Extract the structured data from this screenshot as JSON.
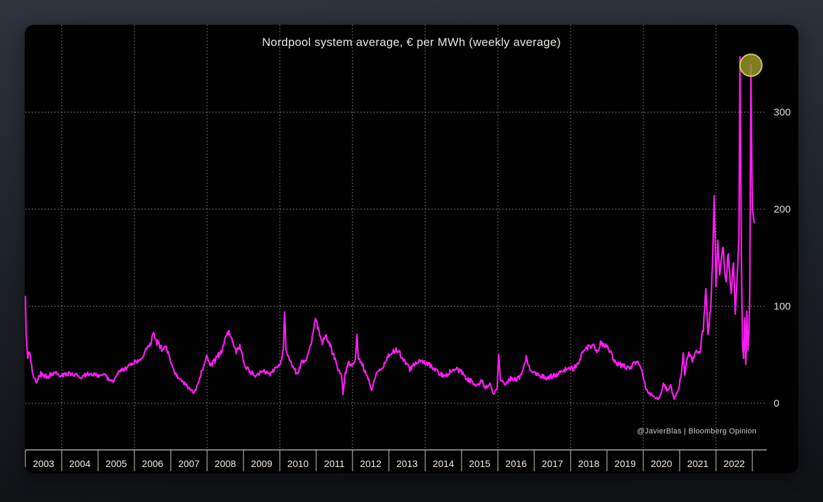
{
  "header": {
    "title": "Nordpool system average, € per MWh (weekly average)"
  },
  "footer": {
    "attribution": "@JavierBlas | Bloomberg Opinion"
  },
  "colors": {
    "background_top": "#2e333d",
    "background_bottom": "#101114",
    "card_background": "#020202",
    "grid": "#96938e",
    "axis": "#cbc8c2",
    "tick_label": "#f0ece7",
    "value_label": "#dedbd6",
    "title_text": "#ebe7e1",
    "attribution_text": "#cfccc7"
  },
  "chart_data": {
    "type": "line",
    "title": "Nordpool system average, € per MWh (weekly average)",
    "ylabel": "€ per MWh",
    "frequency": "weekly average",
    "legend": "none",
    "grid": "dotted, horizontal at y ticks, vertical at even years",
    "x_domain": [
      2003,
      2023.05
    ],
    "y_axis_side": "right",
    "y_ticks": [
      0,
      100,
      200,
      300
    ],
    "y_tick_labels": [
      "0",
      "100",
      "200",
      "300"
    ],
    "ylim_visible": [
      0,
      365
    ],
    "x_tick_labels": [
      "2003",
      "2004",
      "2005",
      "2006",
      "2007",
      "2008",
      "2009",
      "2010",
      "2011",
      "2012",
      "2013",
      "2014",
      "2015",
      "2016",
      "2017",
      "2018",
      "2019",
      "2020",
      "2021",
      "2022"
    ],
    "x_gridline_years": [
      2004,
      2006,
      2008,
      2010,
      2012,
      2014,
      2016,
      2018,
      2020,
      2022
    ],
    "sampling": {
      "per_year": 52
    },
    "series": [
      {
        "name": "Nordpool system average (€/MWh)",
        "color": "#ff1cf4",
        "anchors_format": "[decimal_year, value_eur_mwh, weekly_noise_amplitude]",
        "anchors": [
          [
            2003.0,
            110,
            0
          ],
          [
            2003.02,
            72,
            0
          ],
          [
            2003.06,
            48,
            2
          ],
          [
            2003.12,
            54,
            2
          ],
          [
            2003.19,
            33,
            2
          ],
          [
            2003.29,
            21,
            2
          ],
          [
            2003.42,
            30,
            2.5
          ],
          [
            2003.6,
            27,
            2.5
          ],
          [
            2003.8,
            32,
            2.5
          ],
          [
            2004.0,
            29,
            2.5
          ],
          [
            2004.25,
            31,
            2.5
          ],
          [
            2004.5,
            27,
            2.5
          ],
          [
            2004.75,
            30,
            2.5
          ],
          [
            2005.0,
            29,
            2.5
          ],
          [
            2005.2,
            28,
            2.5
          ],
          [
            2005.42,
            22,
            2
          ],
          [
            2005.55,
            32,
            2.5
          ],
          [
            2005.75,
            35,
            2.5
          ],
          [
            2005.95,
            41,
            3
          ],
          [
            2006.15,
            46,
            3
          ],
          [
            2006.3,
            52,
            3.5
          ],
          [
            2006.45,
            61,
            3.5
          ],
          [
            2006.52,
            74,
            2
          ],
          [
            2006.62,
            63,
            3.5
          ],
          [
            2006.75,
            56,
            3.5
          ],
          [
            2006.88,
            58,
            3
          ],
          [
            2006.97,
            45,
            3
          ],
          [
            2007.1,
            32,
            3
          ],
          [
            2007.25,
            25,
            2.5
          ],
          [
            2007.4,
            20,
            2
          ],
          [
            2007.55,
            13,
            1.5
          ],
          [
            2007.65,
            11,
            1.5
          ],
          [
            2007.78,
            24,
            2.5
          ],
          [
            2007.9,
            39,
            2.5
          ],
          [
            2008.0,
            50,
            3
          ],
          [
            2008.1,
            39,
            3
          ],
          [
            2008.25,
            46,
            3
          ],
          [
            2008.4,
            54,
            3
          ],
          [
            2008.52,
            70,
            2.5
          ],
          [
            2008.6,
            73,
            2.5
          ],
          [
            2008.72,
            61,
            3.5
          ],
          [
            2008.82,
            53,
            3.5
          ],
          [
            2008.9,
            59,
            3
          ],
          [
            2009.0,
            44,
            3
          ],
          [
            2009.1,
            36,
            3
          ],
          [
            2009.22,
            31,
            3
          ],
          [
            2009.38,
            29,
            2.5
          ],
          [
            2009.55,
            33,
            2.5
          ],
          [
            2009.75,
            30,
            2.5
          ],
          [
            2009.95,
            38,
            2.5
          ],
          [
            2010.05,
            44,
            2.5
          ],
          [
            2010.1,
            58,
            0
          ],
          [
            2010.13,
            94,
            0
          ],
          [
            2010.17,
            55,
            0
          ],
          [
            2010.25,
            46,
            3
          ],
          [
            2010.4,
            34,
            3
          ],
          [
            2010.5,
            31,
            3
          ],
          [
            2010.6,
            45,
            3.5
          ],
          [
            2010.7,
            42,
            3
          ],
          [
            2010.82,
            55,
            3.5
          ],
          [
            2010.92,
            75,
            3
          ],
          [
            2010.98,
            89,
            2
          ],
          [
            2011.08,
            72,
            3.5
          ],
          [
            2011.18,
            64,
            3.5
          ],
          [
            2011.28,
            70,
            3
          ],
          [
            2011.4,
            58,
            3.5
          ],
          [
            2011.52,
            44,
            3
          ],
          [
            2011.62,
            34,
            3
          ],
          [
            2011.7,
            28,
            2
          ],
          [
            2011.74,
            9,
            0
          ],
          [
            2011.8,
            30,
            2.5
          ],
          [
            2011.88,
            42,
            2.5
          ],
          [
            2011.98,
            38,
            2.5
          ],
          [
            2012.08,
            44,
            2
          ],
          [
            2012.12,
            71,
            0
          ],
          [
            2012.16,
            45,
            2
          ],
          [
            2012.25,
            42,
            3
          ],
          [
            2012.35,
            32,
            3
          ],
          [
            2012.45,
            25,
            2.5
          ],
          [
            2012.52,
            12,
            1.5
          ],
          [
            2012.6,
            26,
            2.5
          ],
          [
            2012.72,
            33,
            2.5
          ],
          [
            2012.82,
            36,
            2.5
          ],
          [
            2012.95,
            48,
            3
          ],
          [
            2013.05,
            52,
            3
          ],
          [
            2013.18,
            55,
            3
          ],
          [
            2013.28,
            53,
            3
          ],
          [
            2013.38,
            46,
            3
          ],
          [
            2013.48,
            40,
            3
          ],
          [
            2013.58,
            35,
            2.5
          ],
          [
            2013.7,
            40,
            2.5
          ],
          [
            2013.82,
            44,
            2.5
          ],
          [
            2013.95,
            42,
            2.5
          ],
          [
            2014.1,
            40,
            3
          ],
          [
            2014.25,
            35,
            3
          ],
          [
            2014.4,
            30,
            2.5
          ],
          [
            2014.55,
            28,
            2.5
          ],
          [
            2014.7,
            33,
            2.5
          ],
          [
            2014.85,
            35,
            2.5
          ],
          [
            2015.0,
            32,
            2.5
          ],
          [
            2015.15,
            25,
            2.5
          ],
          [
            2015.3,
            22,
            2.5
          ],
          [
            2015.45,
            18,
            2
          ],
          [
            2015.55,
            24,
            2.5
          ],
          [
            2015.65,
            15,
            2
          ],
          [
            2015.78,
            20,
            2
          ],
          [
            2015.88,
            9,
            1.5
          ],
          [
            2015.98,
            16,
            0
          ],
          [
            2016.02,
            50,
            0
          ],
          [
            2016.07,
            24,
            0
          ],
          [
            2016.2,
            21,
            2.5
          ],
          [
            2016.35,
            25,
            2.5
          ],
          [
            2016.5,
            24,
            2.5
          ],
          [
            2016.65,
            28,
            2.5
          ],
          [
            2016.78,
            47,
            2
          ],
          [
            2016.9,
            32,
            2.5
          ],
          [
            2017.05,
            30,
            2.5
          ],
          [
            2017.2,
            28,
            2.5
          ],
          [
            2017.35,
            26,
            2.5
          ],
          [
            2017.5,
            28,
            2.5
          ],
          [
            2017.65,
            30,
            2.5
          ],
          [
            2017.8,
            33,
            2.5
          ],
          [
            2017.95,
            37,
            2.5
          ],
          [
            2018.1,
            36,
            3
          ],
          [
            2018.22,
            43,
            3
          ],
          [
            2018.35,
            53,
            3
          ],
          [
            2018.5,
            58,
            3
          ],
          [
            2018.62,
            60,
            2.5
          ],
          [
            2018.72,
            52,
            3
          ],
          [
            2018.82,
            62,
            2.5
          ],
          [
            2018.95,
            60,
            2.5
          ],
          [
            2019.05,
            56,
            3
          ],
          [
            2019.2,
            44,
            3
          ],
          [
            2019.35,
            40,
            3
          ],
          [
            2019.5,
            38,
            3
          ],
          [
            2019.62,
            35,
            2.5
          ],
          [
            2019.75,
            43,
            3
          ],
          [
            2019.88,
            40,
            2.5
          ],
          [
            2019.98,
            30,
            2
          ],
          [
            2020.08,
            14,
            2
          ],
          [
            2020.2,
            9,
            1.5
          ],
          [
            2020.33,
            6,
            1.5
          ],
          [
            2020.45,
            5,
            1.5
          ],
          [
            2020.55,
            21,
            2.5
          ],
          [
            2020.65,
            14,
            2
          ],
          [
            2020.75,
            18,
            2
          ],
          [
            2020.85,
            4,
            1
          ],
          [
            2020.95,
            12,
            2
          ],
          [
            2021.05,
            30,
            2
          ],
          [
            2021.1,
            52,
            0
          ],
          [
            2021.14,
            29,
            0
          ],
          [
            2021.25,
            55,
            4
          ],
          [
            2021.35,
            40,
            4
          ],
          [
            2021.45,
            58,
            4
          ],
          [
            2021.55,
            50,
            4
          ],
          [
            2021.65,
            78,
            5
          ],
          [
            2021.72,
            118,
            0
          ],
          [
            2021.78,
            74,
            5
          ],
          [
            2021.85,
            95,
            5
          ],
          [
            2021.9,
            140,
            0
          ],
          [
            2021.95,
            214,
            0
          ],
          [
            2022.0,
            120,
            0
          ],
          [
            2022.05,
            168,
            0
          ],
          [
            2022.1,
            128,
            8
          ],
          [
            2022.18,
            165,
            8
          ],
          [
            2022.26,
            122,
            8
          ],
          [
            2022.34,
            158,
            8
          ],
          [
            2022.42,
            110,
            6
          ],
          [
            2022.48,
            150,
            6
          ],
          [
            2022.53,
            92,
            0
          ],
          [
            2022.58,
            128,
            0
          ],
          [
            2022.63,
            170,
            0
          ],
          [
            2022.66,
            357,
            0
          ],
          [
            2022.7,
            140,
            0
          ],
          [
            2022.73,
            60,
            0
          ],
          [
            2022.76,
            46,
            0
          ],
          [
            2022.79,
            88,
            0
          ],
          [
            2022.82,
            40,
            0
          ],
          [
            2022.85,
            95,
            0
          ],
          [
            2022.88,
            55,
            0
          ],
          [
            2022.91,
            75,
            0
          ],
          [
            2022.93,
            120,
            0
          ],
          [
            2022.96,
            349,
            0
          ],
          [
            2023.0,
            200,
            0
          ],
          [
            2023.05,
            186,
            0
          ]
        ]
      }
    ],
    "highlight": {
      "description": "circle marker around final price spike",
      "t": 2022.96,
      "value": 349,
      "fill": "#9b992a",
      "fill_opacity": 0.82,
      "stroke": "#cbcf45"
    }
  }
}
